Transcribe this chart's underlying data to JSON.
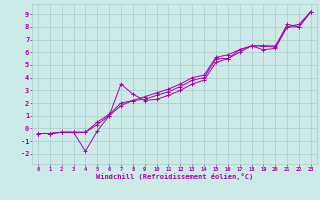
{
  "xlabel": "Windchill (Refroidissement éolien,°C)",
  "xlim": [
    -0.5,
    23.5
  ],
  "ylim": [
    -2.8,
    9.8
  ],
  "xticks": [
    0,
    1,
    2,
    3,
    4,
    5,
    6,
    7,
    8,
    9,
    10,
    11,
    12,
    13,
    14,
    15,
    16,
    17,
    18,
    19,
    20,
    21,
    22,
    23
  ],
  "yticks": [
    -2,
    -1,
    0,
    1,
    2,
    3,
    4,
    5,
    6,
    7,
    8,
    9
  ],
  "bg_color": "#cceae7",
  "grid_color": "#aacccc",
  "line_color": "#aa00aa",
  "series1_x": [
    0,
    1,
    2,
    3,
    4,
    5,
    6,
    7,
    8,
    9,
    10,
    11,
    12,
    13,
    14,
    15,
    16,
    17,
    18,
    19,
    20,
    21,
    22,
    23
  ],
  "series1_y": [
    -0.4,
    -0.4,
    -0.3,
    -0.3,
    -1.8,
    -0.2,
    1.0,
    3.5,
    2.7,
    2.2,
    2.3,
    2.6,
    3.0,
    3.5,
    3.8,
    5.2,
    5.5,
    6.2,
    6.5,
    6.2,
    6.3,
    8.0,
    8.2,
    9.2
  ],
  "series2_x": [
    0,
    1,
    2,
    3,
    4,
    5,
    6,
    7,
    8,
    9,
    10,
    11,
    12,
    13,
    14,
    15,
    16,
    17,
    18,
    19,
    20,
    21,
    22,
    23
  ],
  "series2_y": [
    -0.4,
    -0.4,
    -0.3,
    -0.3,
    -0.3,
    0.3,
    1.0,
    1.8,
    2.2,
    2.3,
    2.6,
    2.9,
    3.3,
    3.8,
    4.0,
    5.5,
    5.5,
    6.0,
    6.5,
    6.5,
    6.5,
    8.0,
    8.0,
    9.2
  ],
  "series3_x": [
    0,
    1,
    2,
    3,
    4,
    5,
    6,
    7,
    8,
    9,
    10,
    11,
    12,
    13,
    14,
    15,
    16,
    17,
    18,
    19,
    20,
    21,
    22,
    23
  ],
  "series3_y": [
    -0.4,
    -0.4,
    -0.3,
    -0.3,
    -0.3,
    0.5,
    1.1,
    2.0,
    2.2,
    2.5,
    2.8,
    3.1,
    3.5,
    4.0,
    4.2,
    5.6,
    5.8,
    6.2,
    6.5,
    6.5,
    6.4,
    8.2,
    8.0,
    9.2
  ]
}
